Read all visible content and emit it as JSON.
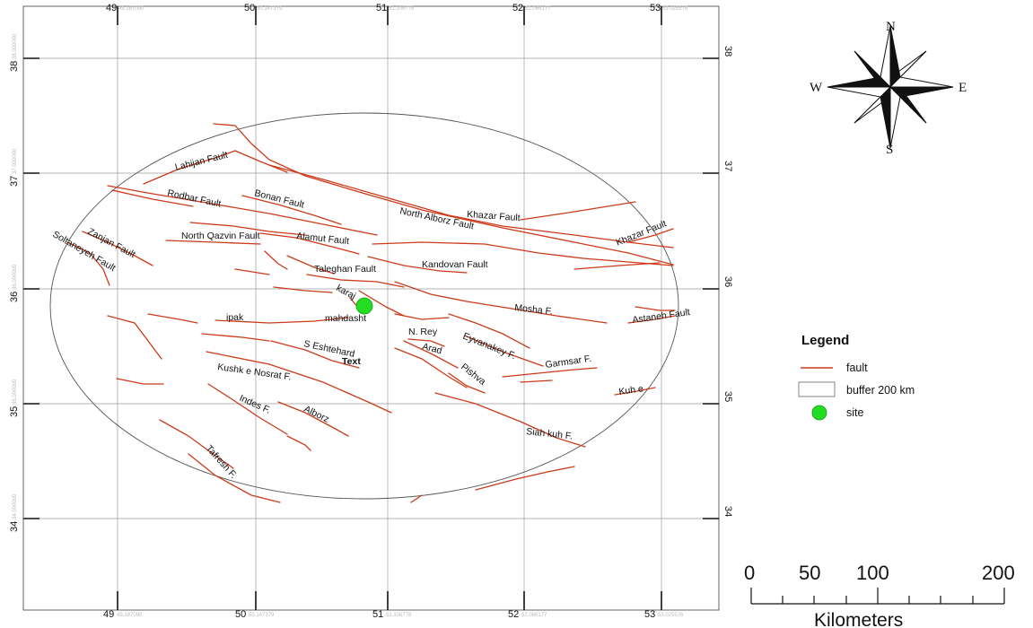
{
  "map": {
    "lon_ticks": [
      {
        "label": "49",
        "sub": "49.187090"
      },
      {
        "label": "50",
        "sub": "50.147379"
      },
      {
        "label": "51",
        "sub": "51.106778"
      },
      {
        "label": "52",
        "sub": "52.066177"
      },
      {
        "label": "53",
        "sub": "53.025576"
      }
    ],
    "lat_ticks": [
      {
        "label": "38",
        "sub": "38.000000"
      },
      {
        "label": "37",
        "sub": "37.000000"
      },
      {
        "label": "36",
        "sub": "36.000000"
      },
      {
        "label": "35",
        "sub": "35.000000"
      },
      {
        "label": "34",
        "sub": "34.000000"
      }
    ],
    "fault_labels": [
      "Lahijan Fault",
      "Rodbar Fault",
      "Bonan Fault",
      "North Alborz Fault",
      "Khazar Fault",
      "Khazar Fault",
      "Zanjan Fault",
      "Soltaneyeh Fault",
      "North Qazvin Fault",
      "Alamut Fault",
      "Taleghan Fault",
      "Kandovan Fault",
      "karaj",
      "mahdasht",
      "Mosha F.",
      "Astaneh Fault",
      "ipak",
      "N. Rey",
      "Arad",
      "Eyvanakey F.",
      "S Eshtehard",
      "Text",
      "Garmsar F.",
      "Kushk e Nosrat F.",
      "Pishva",
      "Kuh e",
      "Indes F.",
      "Alborz",
      "Siah kuh F.",
      "Tafresh F."
    ],
    "site": {
      "lon": 50.82,
      "lat": 35.85,
      "color": "#22dd22"
    },
    "fault_color": "#cc3a1a"
  },
  "compass": {
    "n": "N",
    "s": "S",
    "e": "E",
    "w": "W"
  },
  "legend": {
    "title": "Legend",
    "items": [
      {
        "symbol": "line",
        "label": "fault",
        "color": "#cc3a1a"
      },
      {
        "symbol": "box",
        "label": "buffer 200 km"
      },
      {
        "symbol": "dot",
        "label": "site",
        "color": "#22dd22"
      }
    ]
  },
  "scale_bar": {
    "labels": [
      "0",
      "50",
      "100",
      "200"
    ],
    "unit": "Kilometers"
  }
}
